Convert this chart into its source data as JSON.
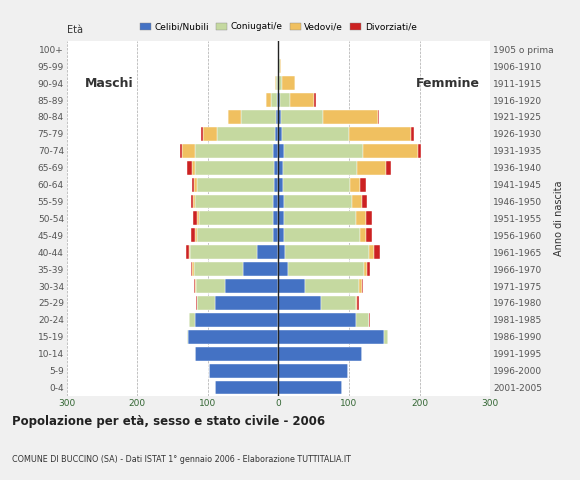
{
  "age_groups": [
    "100+",
    "95-99",
    "90-94",
    "85-89",
    "80-84",
    "75-79",
    "70-74",
    "65-69",
    "60-64",
    "55-59",
    "50-54",
    "45-49",
    "40-44",
    "35-39",
    "30-34",
    "25-29",
    "20-24",
    "15-19",
    "10-14",
    "5-9",
    "0-4"
  ],
  "birth_years": [
    "1905 o prima",
    "1906-1910",
    "1911-1915",
    "1916-1920",
    "1921-1925",
    "1926-1930",
    "1931-1935",
    "1936-1940",
    "1941-1945",
    "1946-1950",
    "1951-1955",
    "1956-1960",
    "1961-1965",
    "1966-1970",
    "1971-1975",
    "1976-1980",
    "1981-1985",
    "1986-1990",
    "1991-1995",
    "1996-2000",
    "2001-2005"
  ],
  "colors": {
    "celibe": "#4472c4",
    "coniugato": "#c5d9a0",
    "vedovo": "#f0c060",
    "divorziato": "#cc2222"
  },
  "males": {
    "celibe": [
      0,
      0,
      0,
      2,
      3,
      5,
      8,
      6,
      6,
      8,
      8,
      8,
      30,
      50,
      75,
      90,
      118,
      128,
      118,
      98,
      90
    ],
    "coniugato": [
      0,
      0,
      3,
      8,
      50,
      82,
      110,
      112,
      110,
      110,
      105,
      108,
      95,
      70,
      42,
      25,
      8,
      2,
      0,
      0,
      0
    ],
    "vedovo": [
      0,
      0,
      2,
      8,
      18,
      20,
      18,
      5,
      4,
      3,
      3,
      2,
      2,
      2,
      1,
      1,
      0,
      0,
      0,
      0,
      0
    ],
    "divorziato": [
      0,
      0,
      0,
      0,
      0,
      3,
      4,
      6,
      3,
      3,
      5,
      6,
      4,
      2,
      2,
      1,
      0,
      0,
      0,
      0,
      0
    ]
  },
  "females": {
    "nubile": [
      0,
      0,
      0,
      2,
      3,
      5,
      8,
      6,
      6,
      8,
      8,
      8,
      10,
      14,
      38,
      60,
      110,
      150,
      118,
      98,
      90
    ],
    "coniugata": [
      0,
      2,
      5,
      14,
      60,
      95,
      112,
      106,
      96,
      96,
      102,
      108,
      118,
      108,
      76,
      50,
      18,
      6,
      0,
      0,
      0
    ],
    "vedova": [
      0,
      2,
      18,
      35,
      78,
      88,
      78,
      40,
      14,
      14,
      14,
      8,
      8,
      4,
      4,
      2,
      1,
      0,
      0,
      0,
      0
    ],
    "divorziata": [
      0,
      0,
      0,
      2,
      2,
      4,
      4,
      8,
      8,
      8,
      8,
      8,
      8,
      4,
      2,
      2,
      1,
      0,
      0,
      0,
      0
    ]
  },
  "xlim": 300,
  "title": "Popolazione per età, sesso e stato civile - 2006",
  "subtitle": "COMUNE DI BUCCINO (SA) - Dati ISTAT 1° gennaio 2006 - Elaborazione TUTTITALIA.IT",
  "xlabel_left": "Maschi",
  "xlabel_right": "Femmine",
  "ylabel": "Età",
  "ylabel_right": "Anno di nascita",
  "legend_labels": [
    "Celibi/Nubili",
    "Coniugati/e",
    "Vedovi/e",
    "Divorziati/e"
  ],
  "bg_color": "#f0f0f0",
  "plot_bg_color": "#ffffff",
  "xticks": [
    -300,
    -200,
    -100,
    0,
    100,
    200,
    300
  ]
}
